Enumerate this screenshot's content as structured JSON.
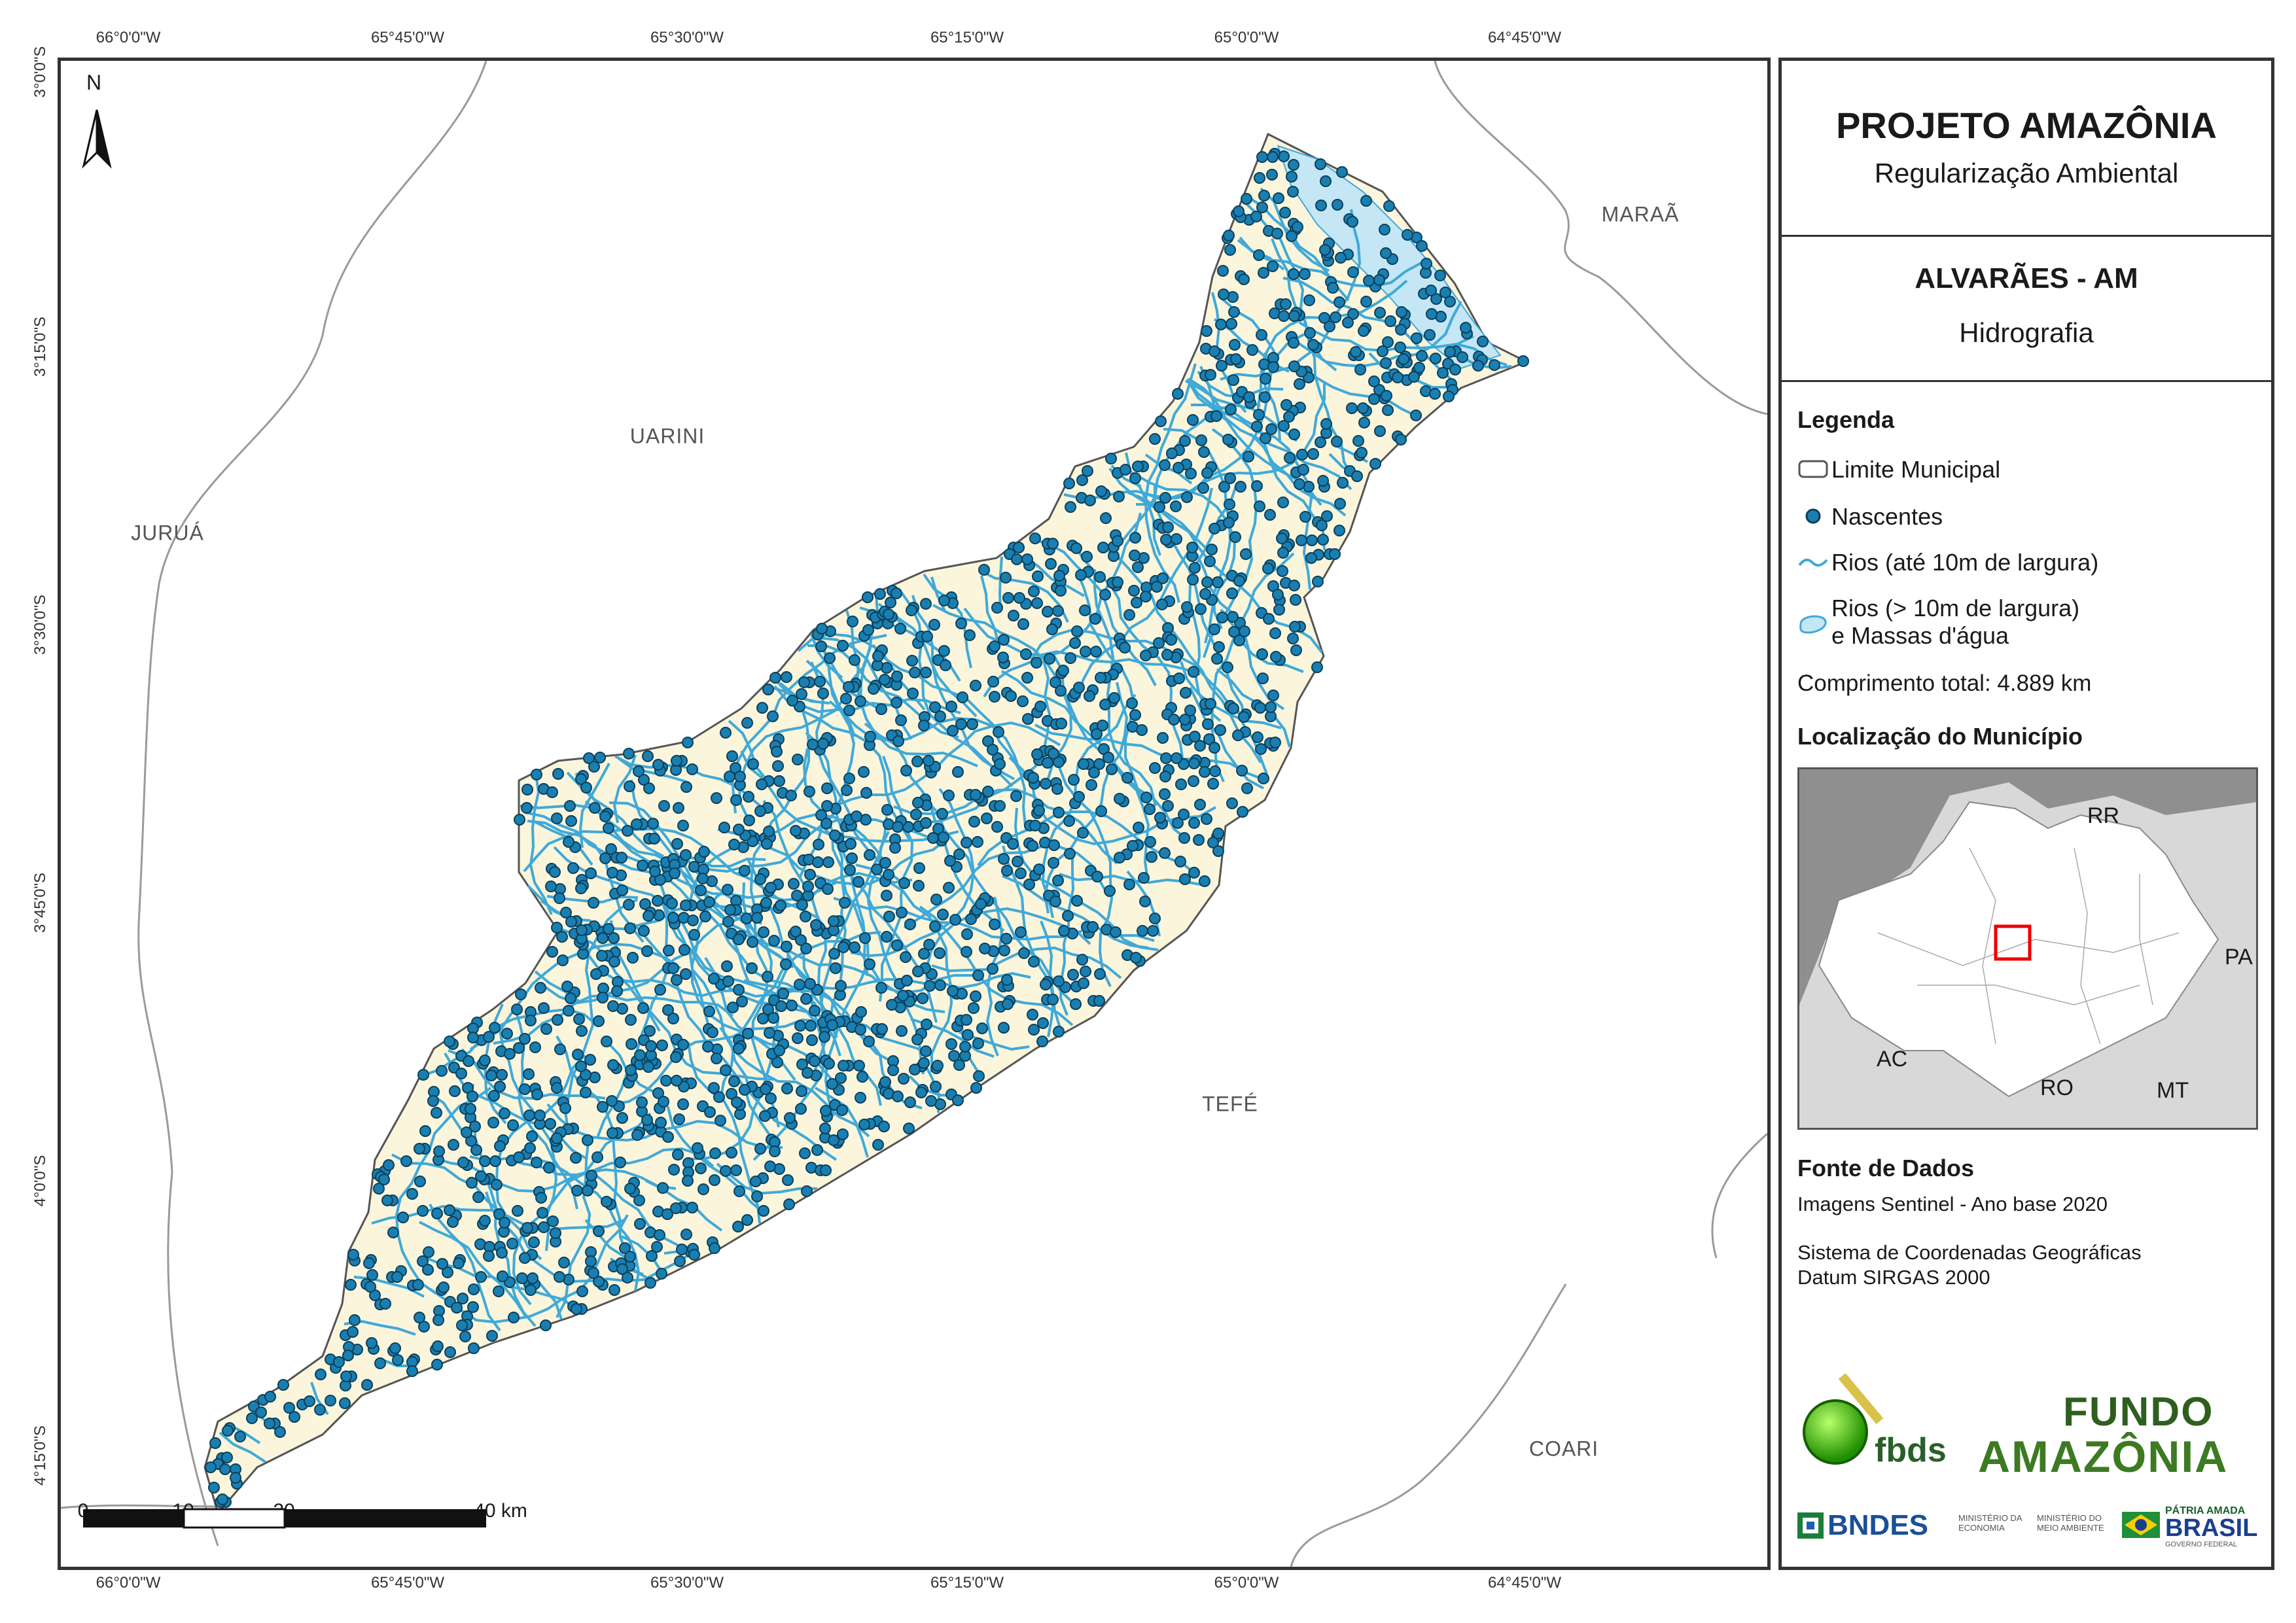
{
  "map": {
    "top_ticks": [
      "66°0'0\"W",
      "65°45'0\"W",
      "65°30'0\"W",
      "65°15'0\"W",
      "65°0'0\"W",
      "64°45'0\"W"
    ],
    "bottom_ticks": [
      "66°0'0\"W",
      "65°45'0\"W",
      "65°30'0\"W",
      "65°15'0\"W",
      "65°0'0\"W",
      "64°45'0\"W"
    ],
    "left_ticks": [
      "3°0'0\"S",
      "3°15'0\"S",
      "3°30'0\"S",
      "3°45'0\"S",
      "4°0'0\"S",
      "4°15'0\"S"
    ],
    "municipalities": {
      "uarini": "UARINI",
      "jurua": "JURUÁ",
      "maraa": "MARAÃ",
      "tefe": "TEFÉ",
      "coari": "COARI"
    },
    "north_label": "N",
    "scale": {
      "labels": [
        "0",
        "10",
        "20",
        "40 km"
      ]
    },
    "colors": {
      "municipality_fill": "#fbf5dc",
      "rivers": "#3fa9d8",
      "springs": "#1a7fb0",
      "water_bodies": "#c5e6f5"
    }
  },
  "panel": {
    "project_title": "PROJETO AMAZÔNIA",
    "project_subtitle": "Regularização Ambiental",
    "municipality": "ALVARÃES - AM",
    "theme": "Hidrografia",
    "legend": {
      "title": "Legenda",
      "items": [
        {
          "label": "Limite Municipal",
          "icon": "boundary-box"
        },
        {
          "label": "Nascentes",
          "icon": "spring-dot"
        },
        {
          "label": "Rios (até 10m de largura)",
          "icon": "river-line"
        },
        {
          "label": "Rios (> 10m de largura)",
          "label2": "e Massas d'água",
          "icon": "water-body"
        }
      ],
      "total_length_label": "Comprimento total:",
      "total_length_value": "4.889 km"
    },
    "location": {
      "title": "Localização do Município",
      "states": [
        "RR",
        "PA",
        "AC",
        "RO",
        "MT"
      ]
    },
    "sources": {
      "title": "Fonte de Dados",
      "line1": "Imagens Sentinel - Ano base 2020",
      "line2": "Sistema de Coordenadas Geográficas",
      "line3": "Datum SIRGAS 2000"
    },
    "logos": {
      "fbds": "fbds",
      "fundo_line1": "FUNDO",
      "fundo_line2": "AMAZÔNIA",
      "bndes": "BNDES",
      "ministry1": "MINISTÉRIO DA ECONOMIA",
      "ministry2": "MINISTÉRIO DO MEIO AMBIENTE",
      "patria": "PÁTRIA AMADA",
      "brasil": "BRASIL",
      "gov": "GOVERNO FEDERAL"
    }
  }
}
